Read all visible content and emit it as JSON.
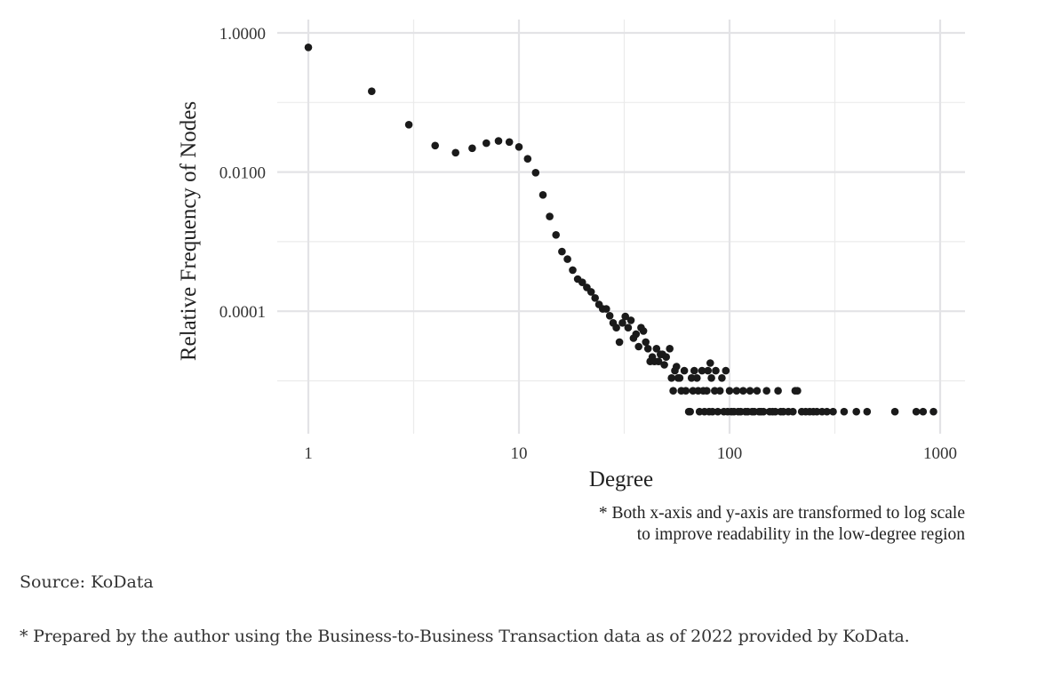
{
  "chart_data": {
    "type": "scatter",
    "title": "",
    "xlabel": "Degree",
    "ylabel": "Relative Frequency of Nodes",
    "xscale": "log10",
    "yscale": "log10",
    "xlim": [
      0.72,
      1300
    ],
    "ylim": [
      2.3e-06,
      1.5
    ],
    "x_ticks": [
      1,
      10,
      100,
      1000
    ],
    "x_tick_labels": [
      "1",
      "10",
      "100",
      "1000"
    ],
    "y_ticks": [
      1,
      0.01,
      0.0001
    ],
    "y_tick_labels": [
      "1.0000",
      "0.0100",
      "0.0001"
    ],
    "grid": true,
    "legend": null,
    "marker_color": "#1a1a1a",
    "points": [
      [
        1,
        0.62
      ],
      [
        2,
        0.145
      ],
      [
        3,
        0.048
      ],
      [
        4,
        0.024
      ],
      [
        5,
        0.019
      ],
      [
        6,
        0.022
      ],
      [
        7,
        0.026
      ],
      [
        8,
        0.028
      ],
      [
        9,
        0.027
      ],
      [
        10,
        0.023
      ],
      [
        11,
        0.0155
      ],
      [
        12,
        0.0098
      ],
      [
        13,
        0.0047
      ],
      [
        14,
        0.0023
      ],
      [
        15,
        0.00125
      ],
      [
        16,
        0.00072
      ],
      [
        17,
        0.00056
      ],
      [
        18,
        0.00039
      ],
      [
        19,
        0.00029
      ],
      [
        20,
        0.00026
      ],
      [
        21,
        0.00022
      ],
      [
        22,
        0.00019
      ],
      [
        23,
        0.000155
      ],
      [
        24,
        0.000125
      ],
      [
        25,
        0.000108
      ],
      [
        26,
        0.000108
      ],
      [
        27,
        8.6e-05
      ],
      [
        28,
        6.8e-05
      ],
      [
        29,
        5.8e-05
      ],
      [
        30,
        3.6e-05
      ],
      [
        31,
        6.8e-05
      ],
      [
        32,
        8.4e-05
      ],
      [
        33,
        5.8e-05
      ],
      [
        34,
        7.4e-05
      ],
      [
        35,
        4.1e-05
      ],
      [
        36,
        4.7e-05
      ],
      [
        37,
        3.1e-05
      ],
      [
        38,
        5.8e-05
      ],
      [
        39,
        5.2e-05
      ],
      [
        40,
        3.6e-05
      ],
      [
        41,
        2.9e-05
      ],
      [
        42,
        1.9e-05
      ],
      [
        43,
        2.2e-05
      ],
      [
        44,
        1.9e-05
      ],
      [
        45,
        2.9e-05
      ],
      [
        46,
        1.9e-05
      ],
      [
        47,
        2.4e-05
      ],
      [
        48,
        2.4e-05
      ],
      [
        49,
        1.7e-05
      ],
      [
        50,
        2.2e-05
      ],
      [
        52,
        2.9e-05
      ],
      [
        53,
        1.1e-05
      ],
      [
        54,
        7.2e-06
      ],
      [
        55,
        1.4e-05
      ],
      [
        56,
        1.6e-05
      ],
      [
        57,
        1.1e-05
      ],
      [
        58,
        1.1e-05
      ],
      [
        59,
        7.2e-06
      ],
      [
        61,
        1.4e-05
      ],
      [
        62,
        7.2e-06
      ],
      [
        64,
        3.6e-06
      ],
      [
        65,
        3.6e-06
      ],
      [
        66,
        1.1e-05
      ],
      [
        67,
        7.2e-06
      ],
      [
        68,
        1.4e-05
      ],
      [
        70,
        1.1e-05
      ],
      [
        71,
        7.2e-06
      ],
      [
        72,
        3.6e-06
      ],
      [
        74,
        1.4e-05
      ],
      [
        75,
        7.2e-06
      ],
      [
        76,
        3.6e-06
      ],
      [
        78,
        7.2e-06
      ],
      [
        79,
        1.4e-05
      ],
      [
        80,
        3.6e-06
      ],
      [
        81,
        1.8e-05
      ],
      [
        82,
        1.1e-05
      ],
      [
        83,
        3.6e-06
      ],
      [
        85,
        7.2e-06
      ],
      [
        86,
        1.4e-05
      ],
      [
        88,
        3.6e-06
      ],
      [
        90,
        7.2e-06
      ],
      [
        92,
        1.1e-05
      ],
      [
        94,
        3.6e-06
      ],
      [
        96,
        1.4e-05
      ],
      [
        98,
        3.6e-06
      ],
      [
        100,
        7.2e-06
      ],
      [
        102,
        3.6e-06
      ],
      [
        105,
        3.6e-06
      ],
      [
        108,
        7.2e-06
      ],
      [
        110,
        3.6e-06
      ],
      [
        113,
        3.6e-06
      ],
      [
        116,
        7.2e-06
      ],
      [
        119,
        3.6e-06
      ],
      [
        122,
        3.6e-06
      ],
      [
        125,
        7.2e-06
      ],
      [
        128,
        3.6e-06
      ],
      [
        131,
        3.6e-06
      ],
      [
        135,
        7.2e-06
      ],
      [
        138,
        3.6e-06
      ],
      [
        141,
        3.6e-06
      ],
      [
        145,
        3.6e-06
      ],
      [
        150,
        7.2e-06
      ],
      [
        155,
        3.6e-06
      ],
      [
        160,
        3.6e-06
      ],
      [
        165,
        3.6e-06
      ],
      [
        170,
        7.2e-06
      ],
      [
        175,
        3.6e-06
      ],
      [
        180,
        3.6e-06
      ],
      [
        190,
        3.6e-06
      ],
      [
        200,
        3.6e-06
      ],
      [
        205,
        7.2e-06
      ],
      [
        210,
        7.2e-06
      ],
      [
        220,
        3.6e-06
      ],
      [
        230,
        3.6e-06
      ],
      [
        240,
        3.6e-06
      ],
      [
        250,
        3.6e-06
      ],
      [
        260,
        3.6e-06
      ],
      [
        275,
        3.6e-06
      ],
      [
        290,
        3.6e-06
      ],
      [
        310,
        3.6e-06
      ],
      [
        350,
        3.6e-06
      ],
      [
        400,
        3.6e-06
      ],
      [
        450,
        3.6e-06
      ],
      [
        610,
        3.6e-06
      ],
      [
        770,
        3.6e-06
      ],
      [
        830,
        3.6e-06
      ],
      [
        930,
        3.6e-06
      ]
    ],
    "annotations": [
      "* Both x-axis and y-axis are transformed to log scale",
      "to improve readability in the low-degree region"
    ]
  },
  "notes": {
    "line1": "* Both x-axis and y-axis are transformed to log scale",
    "line2": "to improve readability in the low-degree region"
  },
  "source": "Source: KoData",
  "prepared_by": "* Prepared by the author using the Business-to-Business Transaction data as of 2022 provided by KoData."
}
